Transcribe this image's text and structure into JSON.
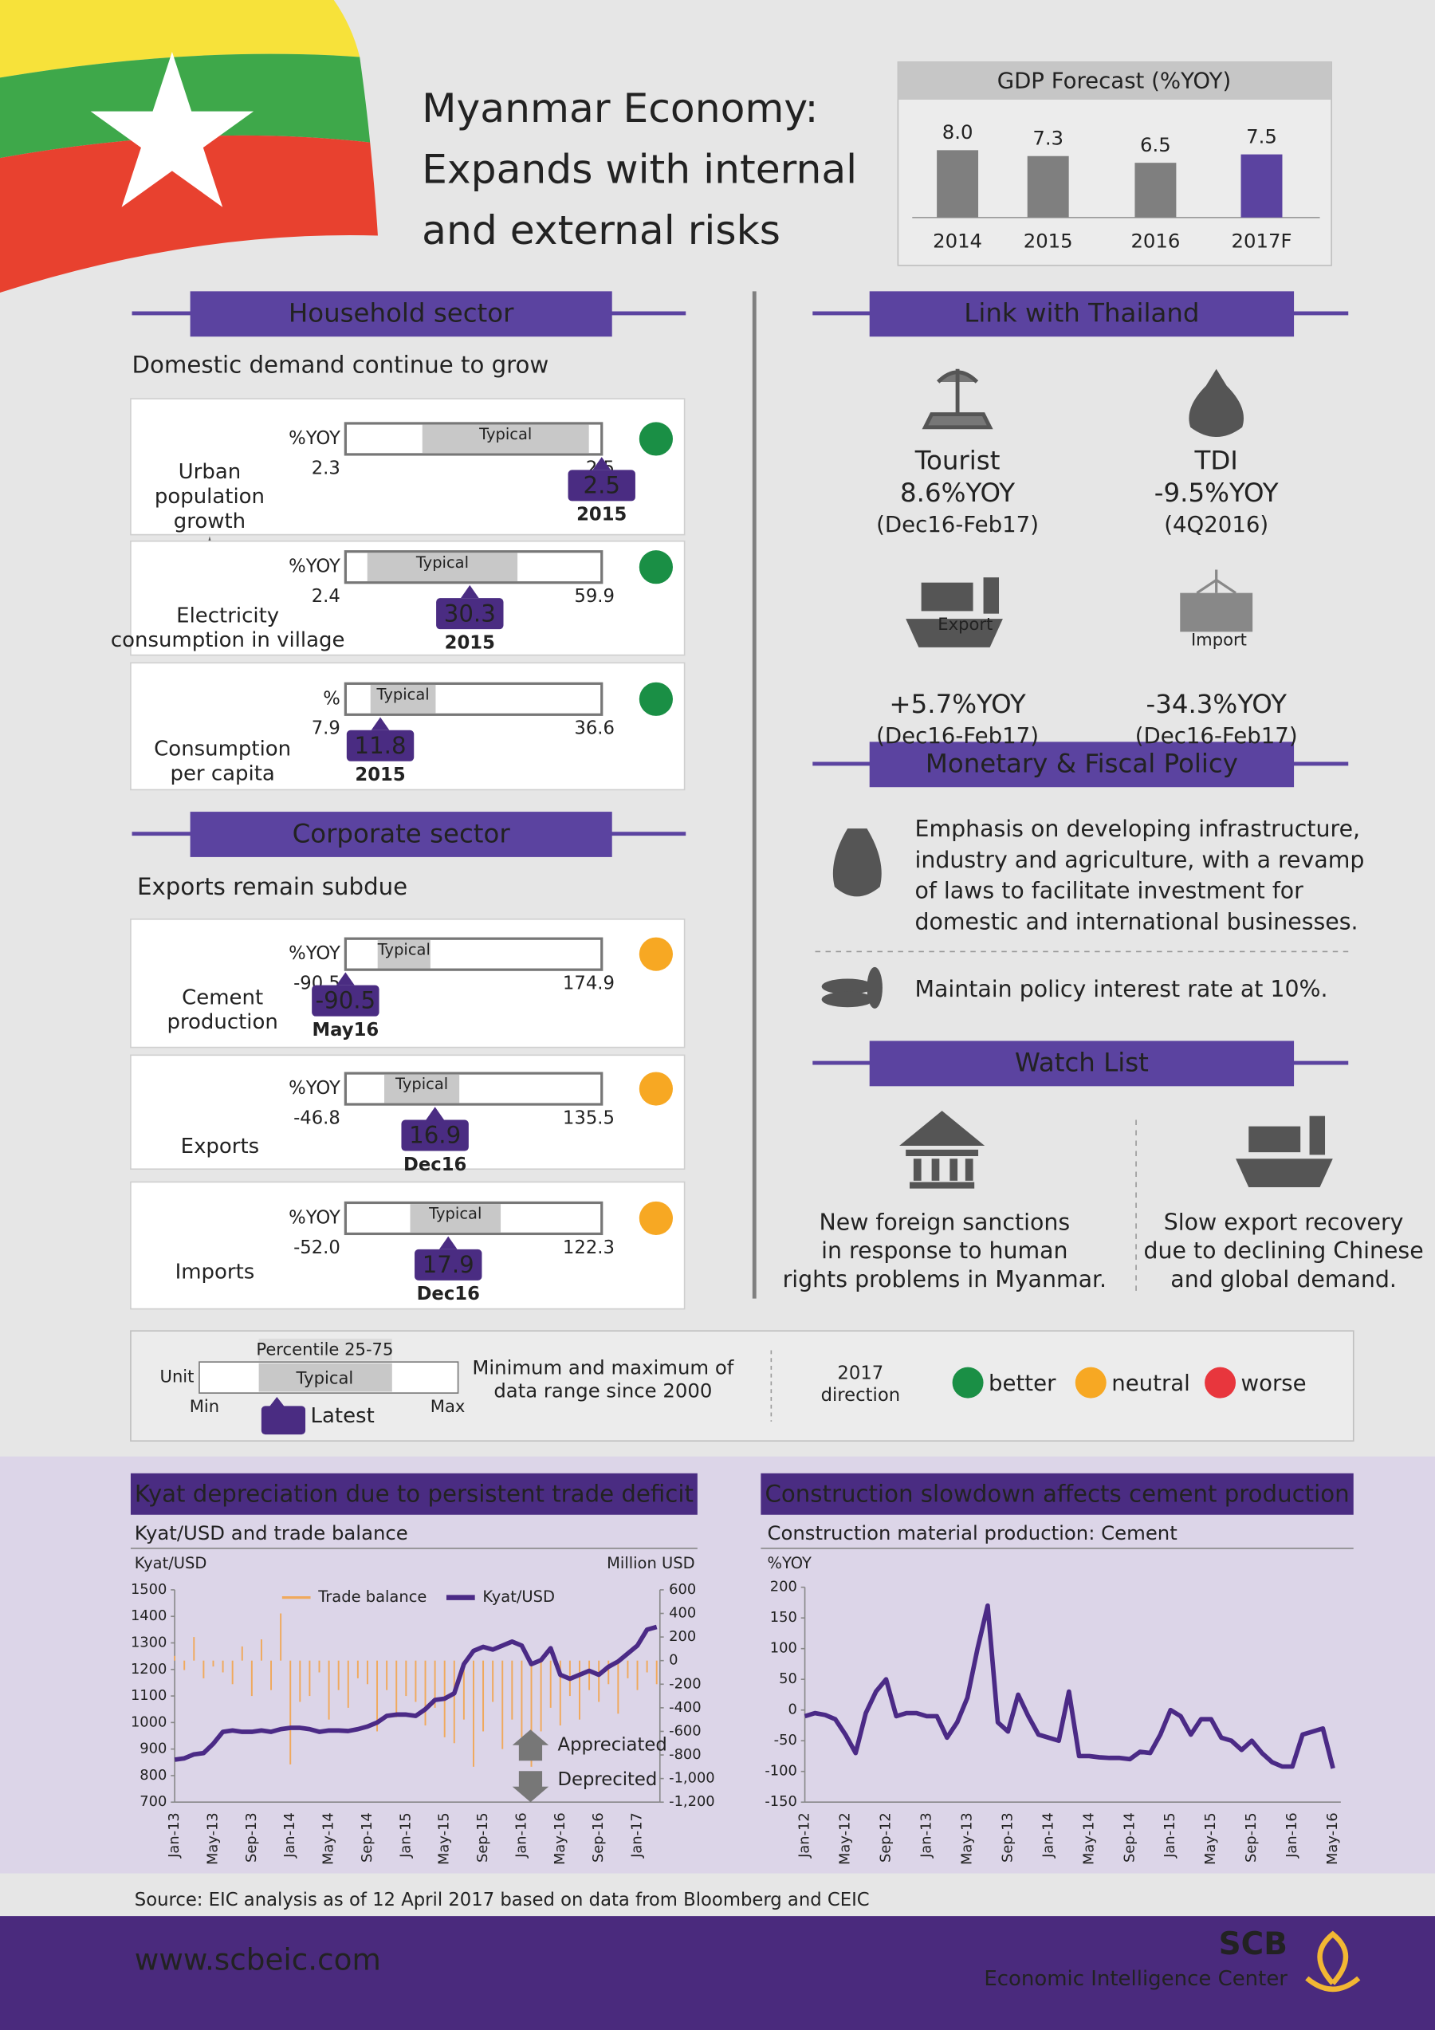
{
  "header": {
    "title_lines": [
      "Myanmar Economy:",
      "Expands with internal",
      "and external risks"
    ]
  },
  "household": {
    "heading": "Household sector",
    "subheading": "Domestic demand continue to grow",
    "indicators": [
      {
        "name_lines": [
          "Urban",
          "population",
          "growth"
        ],
        "unit": "%YOY",
        "typical_label": "Typical",
        "min": 2.3,
        "max": 2.5,
        "typical": [
          2.36,
          2.49
        ],
        "latest": 2.5,
        "date": "2015",
        "status_color": "#1a8f45"
      },
      {
        "name_lines": [
          "Electricity",
          "consumption in village"
        ],
        "unit": "%YOY",
        "typical_label": "Typical",
        "min": 2.4,
        "max": 59.9,
        "typical": [
          7.3,
          41
        ],
        "latest": 30.3,
        "date": "2015",
        "status_color": "#1a8f45"
      },
      {
        "name_lines": [
          "Consumption",
          "per capita"
        ],
        "unit": "%",
        "typical_label": "Typical",
        "min": 7.9,
        "max": 36.6,
        "typical": [
          10.7,
          18
        ],
        "latest": 11.8,
        "date": "2015",
        "status_color": "#1a8f45"
      }
    ]
  },
  "corporate": {
    "heading": "Corporate sector",
    "subheading": "Exports remain subdue",
    "indicators": [
      {
        "name_lines": [
          "Cement",
          "production"
        ],
        "unit": "%YOY",
        "typical_label": "Typical",
        "min": -90.5,
        "max": 174.9,
        "typical": [
          -57.2,
          -2.5
        ],
        "latest": -90.5,
        "date": "May16",
        "status_color": "#f7a823"
      },
      {
        "name_lines": [
          "Exports"
        ],
        "unit": "%YOY",
        "typical_label": "Typical",
        "min": -46.8,
        "max": 135.5,
        "typical": [
          -19.2,
          34.2
        ],
        "latest": 16.9,
        "date": "Dec16",
        "status_color": "#f7a823"
      },
      {
        "name_lines": [
          "Imports"
        ],
        "unit": "%YOY",
        "typical_label": "Typical",
        "min": {
          "value": -52,
          "label": "-52.0"
        },
        "max": 122.3,
        "typical": [
          -8,
          53.6
        ],
        "latest": 17.9,
        "date": "Dec16",
        "status_color": "#f7a823"
      }
    ]
  },
  "thailand": {
    "heading": "Link with Thailand",
    "items": [
      {
        "name": "Tourist",
        "value": "8.6%YOY",
        "period": "(Dec16-Feb17)"
      },
      {
        "name": "TDI",
        "value": "-9.5%YOY",
        "period": "(4Q2016)"
      },
      {
        "name": "Export",
        "value": "+5.7%YOY",
        "period": "(Dec16-Feb17)"
      },
      {
        "name": "Import",
        "value": "-34.3%YOY",
        "period": "(Dec16-Feb17)"
      }
    ]
  },
  "policy": {
    "heading": "Monetary & Fiscal Policy",
    "items": [
      {
        "lines": [
          "Emphasis on developing infrastructure,",
          "industry and agriculture, with a revamp",
          "of laws to facilitate investment for",
          "domestic and international businesses."
        ]
      },
      {
        "lines": [
          "Maintain policy interest rate at 10%."
        ]
      }
    ]
  },
  "watch": {
    "heading": "Watch List",
    "items": [
      {
        "lines": [
          "New foreign sanctions",
          "in response to human",
          "rights problems in Myanmar."
        ]
      },
      {
        "lines": [
          "Slow export recovery",
          "due to declining Chinese",
          "and global demand."
        ]
      }
    ]
  },
  "legend": {
    "percentile": "Percentile 25-75",
    "unit": "Unit",
    "typical": "Typical",
    "min": "Min",
    "max": "Max",
    "latest": "Latest",
    "range_lines": [
      "Minimum and maximum of",
      "data range since 2000"
    ],
    "direction_lines": [
      "2017",
      "direction"
    ],
    "statuses": [
      {
        "name": "better",
        "color": "#1a8f45"
      },
      {
        "name": "neutral",
        "color": "#f7a823"
      },
      {
        "name": "worse",
        "color": "#e8363d"
      }
    ]
  },
  "source": "Source: EIC analysis as of 12 April 2017 based on data from Bloomberg and CEIC",
  "footer": {
    "url": "www.scbeic.com",
    "brand": "SCB",
    "unit": "Economic Intelligence Center"
  },
  "chart_data": [
    {
      "type": "bar",
      "title": "GDP Forecast (%YOY)",
      "categories": [
        "2014",
        "2015",
        "2016",
        "2017F"
      ],
      "values": [
        8.0,
        7.3,
        6.5,
        7.5
      ],
      "value_labels": [
        "8.0",
        "7.3",
        "6.5",
        "7.5"
      ],
      "colors": [
        "#7f7f7f",
        "#7f7f7f",
        "#7f7f7f",
        "#5b43a0"
      ]
    },
    {
      "type": "bar_line",
      "title": "Kyat depreciation due to persistent trade deficit",
      "subtitle": "Kyat/USD and trade balance",
      "y_label": "Kyat/USD",
      "y2_label": "Million USD",
      "categories": [
        "Jan-13",
        null,
        null,
        null,
        "May-13",
        null,
        null,
        null,
        "Sep-13",
        null,
        null,
        null,
        "Jan-14",
        null,
        null,
        null,
        "May-14",
        null,
        null,
        null,
        "Sep-14",
        null,
        null,
        null,
        "Jan-15",
        null,
        null,
        null,
        "May-15",
        null,
        null,
        null,
        "Sep-15",
        null,
        null,
        null,
        "Jan-16",
        null,
        null,
        null,
        "May-16",
        null,
        null,
        null,
        "Sep-16",
        null,
        null,
        null,
        "Jan-17",
        null,
        null
      ],
      "series": [
        {
          "name": "Trade balance",
          "color": "#f0a95c",
          "type": "bar",
          "axis": "y2",
          "values": [
            40,
            -80,
            200,
            -150,
            -50,
            -100,
            -200,
            120,
            -300,
            180,
            -250,
            400,
            -880,
            -350,
            -300,
            -100,
            -500,
            -250,
            -400,
            -150,
            -200,
            -600,
            -250,
            -480,
            -300,
            -350,
            -550,
            -400,
            -650,
            -700,
            -500,
            -900,
            -600,
            -350,
            -750,
            -500,
            -650,
            -900,
            -600,
            -400,
            -550,
            -300,
            -500,
            -250,
            -350,
            -200,
            -450,
            -150,
            -250,
            -100,
            -200
          ]
        },
        {
          "name": "Kyat/USD",
          "color": "#4b2a86",
          "type": "line",
          "values": [
            860,
            865,
            880,
            885,
            920,
            965,
            970,
            965,
            965,
            970,
            965,
            975,
            980,
            980,
            975,
            965,
            970,
            970,
            968,
            975,
            985,
            1000,
            1025,
            1030,
            1030,
            1025,
            1050,
            1085,
            1090,
            1110,
            1220,
            1270,
            1285,
            1275,
            1290,
            1305,
            1290,
            1220,
            1235,
            1280,
            1180,
            1165,
            1180,
            1195,
            1180,
            1210,
            1230,
            1260,
            1290,
            1350,
            1360
          ]
        }
      ],
      "ylim": [
        700,
        1500
      ],
      "yticks": [
        700,
        800,
        900,
        1000,
        1100,
        1200,
        1300,
        1400,
        1500
      ],
      "y2lim": [
        -1200,
        600
      ],
      "y2ticks": [
        {
          "value": -1200,
          "label": "-1,200"
        },
        {
          "value": -1000,
          "label": "-1,000"
        },
        -800,
        -600,
        -400,
        -200,
        0,
        200,
        400,
        600
      ],
      "annotations": [
        "Appreciated",
        "Deprecited"
      ]
    },
    {
      "type": "line",
      "title": "Construction slowdown affects cement production",
      "subtitle": "Construction material production: Cement",
      "y_label": "%YOY",
      "categories": [
        "Jan-12",
        null,
        null,
        null,
        "May-12",
        null,
        null,
        null,
        "Sep-12",
        null,
        null,
        null,
        "Jan-13",
        null,
        null,
        null,
        "May-13",
        null,
        null,
        null,
        "Sep-13",
        null,
        null,
        null,
        "Jan-14",
        null,
        null,
        null,
        "May-14",
        null,
        null,
        null,
        "Sep-14",
        null,
        null,
        null,
        "Jan-15",
        null,
        null,
        null,
        "May-15",
        null,
        null,
        null,
        "Sep-15",
        null,
        null,
        null,
        "Jan-16",
        null,
        null,
        null,
        "May-16"
      ],
      "color": "#4b2a86",
      "values": [
        -10,
        -5,
        -8,
        -15,
        -40,
        -70,
        -5,
        30,
        50,
        -10,
        -5,
        -5,
        -10,
        -10,
        -45,
        -20,
        20,
        100,
        170,
        -20,
        -35,
        25,
        -10,
        -40,
        -45,
        -50,
        30,
        -75,
        -75,
        -77,
        -78,
        -78,
        -80,
        -68,
        -70,
        -40,
        0,
        -10,
        -40,
        -15,
        -15,
        -45,
        -50,
        -65,
        -50,
        -70,
        -85,
        -92,
        -92,
        -40,
        -35,
        -30,
        -95
      ],
      "ylim": [
        -150,
        200
      ],
      "yticks": [
        -150,
        -100,
        -50,
        0,
        50,
        100,
        150,
        200
      ]
    }
  ]
}
